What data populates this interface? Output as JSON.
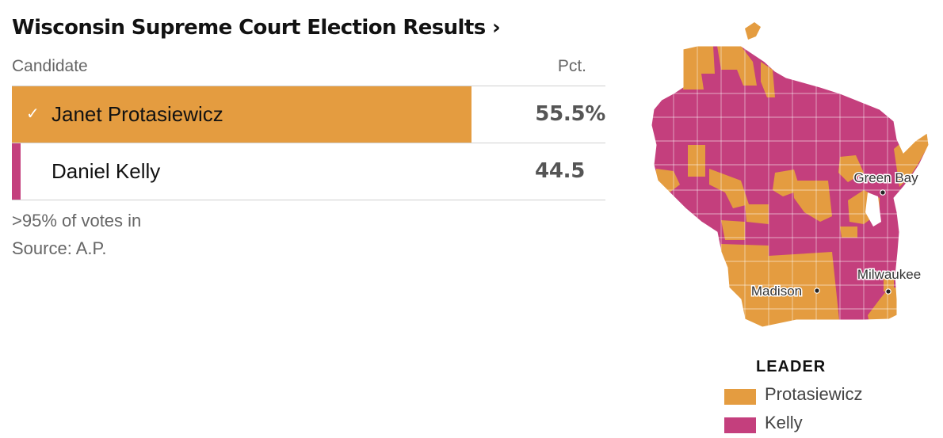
{
  "header": {
    "title": "Wisconsin Supreme Court Election Results ›"
  },
  "table": {
    "columns": {
      "candidate": "Candidate",
      "pct": "Pct."
    },
    "rows": [
      {
        "name": "Janet Protasiewicz",
        "pct": "55.5%",
        "winner": true,
        "color": "#e49c40",
        "share": 0.555
      },
      {
        "name": "Daniel Kelly",
        "pct": "44.5",
        "winner": false,
        "color": "#c43f7d",
        "share": 0.445
      }
    ],
    "check_icon": "checkmark-icon"
  },
  "footnote": {
    "reporting": ">95% of votes in",
    "source": "Source: A.P."
  },
  "map": {
    "region": "Wisconsin",
    "cities": [
      {
        "name": "Green Bay"
      },
      {
        "name": "Milwaukee"
      },
      {
        "name": "Madison"
      }
    ]
  },
  "legend": {
    "title": "LEADER",
    "items": [
      {
        "label": "Protasiewicz",
        "color": "#e49c40"
      },
      {
        "label": "Kelly",
        "color": "#c43f7d"
      }
    ]
  }
}
